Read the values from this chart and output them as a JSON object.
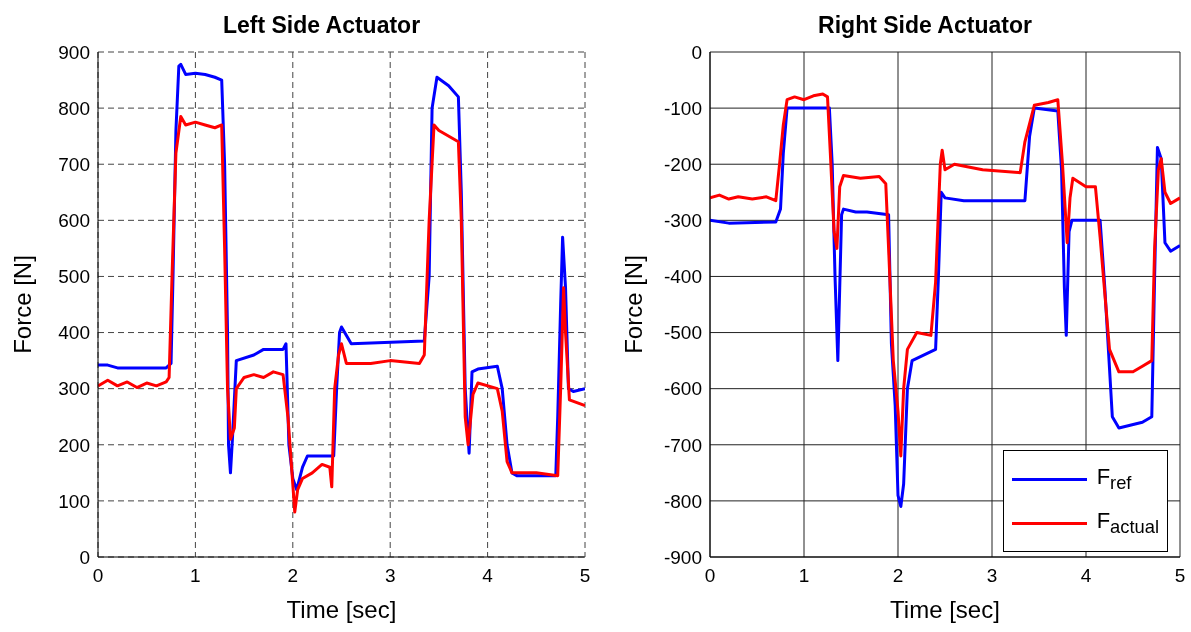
{
  "chart_data": [
    {
      "type": "line",
      "title": "Left Side Actuator",
      "xlabel": "Time [sec]",
      "ylabel": "Force [N]",
      "xlim": [
        0,
        5
      ],
      "xticks": [
        0,
        1,
        2,
        3,
        4,
        5
      ],
      "ylim": [
        0,
        900
      ],
      "yticks": [
        0,
        100,
        200,
        300,
        400,
        500,
        600,
        700,
        800,
        900
      ],
      "grid": true,
      "legend": false,
      "series": [
        {
          "color": "#0000ff",
          "x": [
            0,
            0.1,
            0.2,
            0.7,
            0.75,
            0.77,
            0.8,
            0.83,
            0.85,
            0.9,
            1.0,
            1.1,
            1.2,
            1.27,
            1.3,
            1.33,
            1.34,
            1.36,
            1.38,
            1.42,
            1.6,
            1.7,
            1.9,
            1.93,
            1.96,
            2.0,
            2.04,
            2.1,
            2.15,
            2.42,
            2.45,
            2.48,
            2.5,
            2.6,
            3.35,
            3.4,
            3.43,
            3.48,
            3.6,
            3.7,
            3.73,
            3.77,
            3.81,
            3.84,
            3.9,
            4.1,
            4.15,
            4.2,
            4.25,
            4.3,
            4.7,
            4.72,
            4.75,
            4.77,
            4.8,
            4.83,
            4.88,
            5.0
          ],
          "values": [
            342,
            342,
            337,
            337,
            345,
            500,
            760,
            875,
            878,
            860,
            862,
            860,
            855,
            850,
            700,
            400,
            200,
            150,
            210,
            350,
            360,
            370,
            370,
            380,
            200,
            140,
            120,
            160,
            180,
            180,
            300,
            400,
            410,
            380,
            385,
            500,
            800,
            855,
            840,
            820,
            650,
            300,
            185,
            330,
            335,
            340,
            300,
            200,
            150,
            145,
            145,
            250,
            450,
            570,
            480,
            300,
            295,
            300
          ]
        },
        {
          "color": "#ff0000",
          "x": [
            0,
            0.1,
            0.2,
            0.3,
            0.4,
            0.5,
            0.6,
            0.7,
            0.73,
            0.76,
            0.8,
            0.85,
            0.9,
            1.0,
            1.1,
            1.2,
            1.27,
            1.3,
            1.33,
            1.36,
            1.4,
            1.42,
            1.5,
            1.6,
            1.7,
            1.8,
            1.9,
            1.95,
            2.0,
            2.02,
            2.05,
            2.1,
            2.2,
            2.3,
            2.38,
            2.4,
            2.43,
            2.47,
            2.5,
            2.55,
            2.8,
            3.0,
            3.3,
            3.35,
            3.4,
            3.45,
            3.5,
            3.7,
            3.73,
            3.77,
            3.8,
            3.85,
            3.9,
            4.1,
            4.15,
            4.2,
            4.25,
            4.5,
            4.72,
            4.75,
            4.78,
            4.8,
            4.84,
            5.0
          ],
          "values": [
            305,
            315,
            305,
            312,
            302,
            310,
            305,
            312,
            320,
            500,
            720,
            785,
            770,
            775,
            770,
            765,
            770,
            550,
            300,
            210,
            230,
            300,
            320,
            325,
            320,
            330,
            325,
            250,
            130,
            80,
            120,
            140,
            150,
            165,
            160,
            125,
            300,
            360,
            380,
            345,
            345,
            350,
            345,
            360,
            600,
            770,
            760,
            740,
            600,
            250,
            200,
            290,
            310,
            300,
            260,
            170,
            150,
            150,
            145,
            300,
            480,
            400,
            280,
            270
          ]
        }
      ]
    },
    {
      "type": "line",
      "title": "Right Side Actuator",
      "xlabel": "Time [sec]",
      "ylabel": "Force [N]",
      "xlim": [
        0,
        5
      ],
      "xticks": [
        0,
        1,
        2,
        3,
        4,
        5
      ],
      "ylim": [
        -900,
        0
      ],
      "yticks": [
        -900,
        -800,
        -700,
        -600,
        -500,
        -400,
        -300,
        -200,
        -100,
        0
      ],
      "grid": true,
      "legend": "bottom right",
      "series": [
        {
          "name": "F$_{ref}$",
          "color": "#0000ff",
          "x": [
            0,
            0.2,
            0.7,
            0.75,
            0.78,
            0.82,
            1.27,
            1.3,
            1.33,
            1.36,
            1.38,
            1.4,
            1.42,
            1.55,
            1.67,
            1.9,
            1.93,
            1.97,
            2.0,
            2.03,
            2.06,
            2.1,
            2.15,
            2.4,
            2.43,
            2.46,
            2.5,
            2.7,
            3.35,
            3.4,
            3.45,
            3.7,
            3.74,
            3.77,
            3.79,
            3.82,
            3.85,
            4.15,
            4.2,
            4.28,
            4.35,
            4.6,
            4.7,
            4.73,
            4.76,
            4.8,
            4.84,
            4.9,
            5.0
          ],
          "values": [
            -300,
            -305,
            -303,
            -280,
            -180,
            -100,
            -100,
            -200,
            -400,
            -550,
            -420,
            -290,
            -280,
            -285,
            -285,
            -290,
            -520,
            -630,
            -790,
            -810,
            -770,
            -600,
            -550,
            -530,
            -400,
            -250,
            -260,
            -265,
            -265,
            -150,
            -100,
            -105,
            -210,
            -420,
            -505,
            -320,
            -300,
            -300,
            -420,
            -650,
            -670,
            -660,
            -650,
            -400,
            -170,
            -190,
            -340,
            -355,
            -345
          ]
        },
        {
          "name": "F$_{actual}$",
          "color": "#ff0000",
          "x": [
            0,
            0.1,
            0.2,
            0.3,
            0.45,
            0.6,
            0.7,
            0.74,
            0.78,
            0.82,
            0.9,
            1.0,
            1.1,
            1.2,
            1.25,
            1.28,
            1.32,
            1.35,
            1.38,
            1.42,
            1.6,
            1.8,
            1.87,
            1.9,
            1.95,
            2.0,
            2.03,
            2.06,
            2.1,
            2.2,
            2.35,
            2.4,
            2.45,
            2.47,
            2.5,
            2.6,
            2.9,
            3.3,
            3.35,
            3.45,
            3.6,
            3.7,
            3.75,
            3.8,
            3.83,
            3.86,
            4.0,
            4.1,
            4.15,
            4.25,
            4.35,
            4.5,
            4.6,
            4.7,
            4.73,
            4.77,
            4.8,
            4.84,
            4.9,
            5.0
          ],
          "values": [
            -260,
            -255,
            -262,
            -258,
            -262,
            -258,
            -265,
            -200,
            -130,
            -85,
            -80,
            -85,
            -78,
            -75,
            -80,
            -180,
            -320,
            -350,
            -240,
            -220,
            -225,
            -222,
            -235,
            -350,
            -550,
            -640,
            -720,
            -600,
            -530,
            -500,
            -505,
            -410,
            -200,
            -175,
            -210,
            -200,
            -210,
            -215,
            -160,
            -95,
            -90,
            -85,
            -200,
            -340,
            -260,
            -225,
            -240,
            -240,
            -330,
            -530,
            -570,
            -570,
            -560,
            -550,
            -350,
            -210,
            -190,
            -250,
            -270,
            -260
          ]
        }
      ]
    }
  ]
}
